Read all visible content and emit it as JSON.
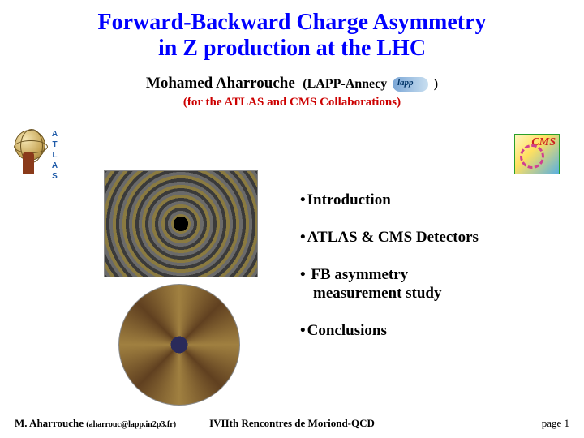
{
  "title_line1": "Forward-Backward Charge Asymmetry",
  "title_line2": "in Z production at the LHC",
  "author_name": "Mohamed Aharrouche",
  "author_affil_prefix": "(LAPP-Annecy",
  "author_affil_suffix": ")",
  "collab_text": "(for the ATLAS and CMS Collaborations)",
  "atlas_label": "ATLAS",
  "cms_label": "CMS",
  "bullets": {
    "b1": "Introduction",
    "b2": "ATLAS & CMS Detectors",
    "b3a": "FB asymmetry",
    "b3b": "measurement study",
    "b4": "Conclusions"
  },
  "footer": {
    "author": "M. Aharrouche",
    "email": "(aharrouc@lapp.in2p3.fr)",
    "conference": "IVIIth Rencontres de Moriond-QCD",
    "page_label": "page",
    "page_num": "1"
  },
  "colors": {
    "title": "#0000ff",
    "collab": "#cc0000",
    "text": "#000000",
    "background": "#ffffff"
  }
}
